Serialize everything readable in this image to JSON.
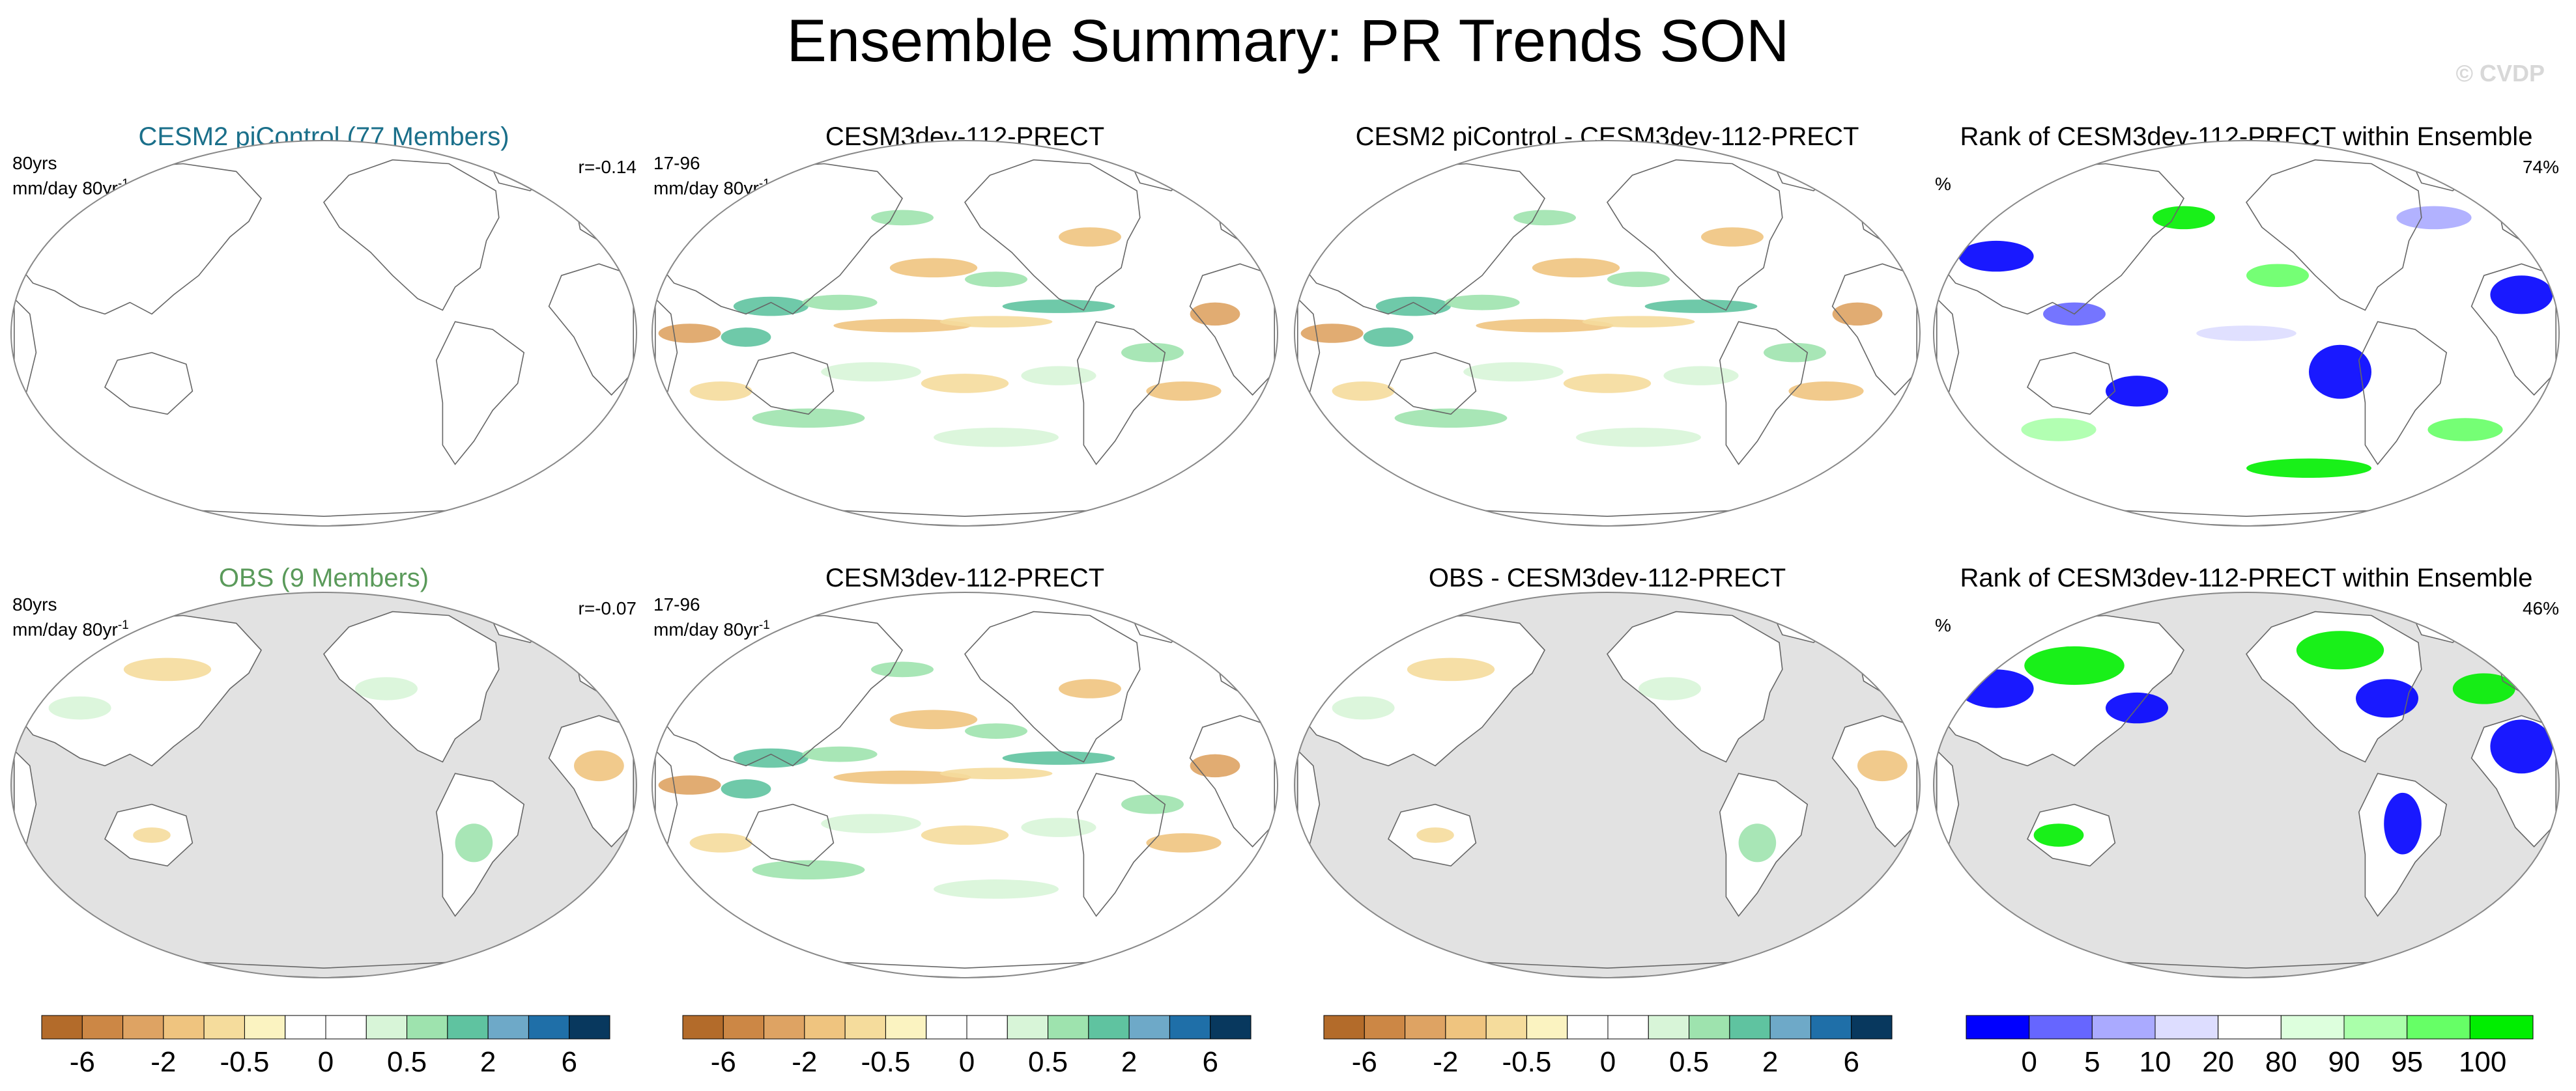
{
  "title": "Ensemble Summary: PR Trends SON",
  "watermark": "© CVDP",
  "colors": {
    "ensemble_title": "#1a6f8a",
    "obs_title": "#5a9a5a",
    "land_gray": "#e2e2e2",
    "coast": "#666666"
  },
  "rows": [
    {
      "panels": [
        {
          "title": "CESM2 piControl (77 Members)",
          "left_top": "80yrs",
          "left_bottom": "mm/day 80yr",
          "left_sup": "-1",
          "right": "r=-0.14"
        },
        {
          "title": "CESM3dev-112-PRECT",
          "left_top": "17-96",
          "left_bottom": "mm/day 80yr",
          "left_sup": "-1",
          "right": ""
        },
        {
          "title": "CESM2 piControl - CESM3dev-112-PRECT",
          "left_top": "",
          "left_bottom": "",
          "left_sup": "",
          "right": ""
        },
        {
          "title": "Rank of CESM3dev-112-PRECT within Ensemble",
          "left_top": "",
          "left_bottom": "%",
          "left_sup": "",
          "right": "74%"
        }
      ]
    },
    {
      "panels": [
        {
          "title": "OBS (9 Members)",
          "left_top": "80yrs",
          "left_bottom": "mm/day 80yr",
          "left_sup": "-1",
          "right": "r=-0.07"
        },
        {
          "title": "CESM3dev-112-PRECT",
          "left_top": "17-96",
          "left_bottom": "mm/day 80yr",
          "left_sup": "-1",
          "right": ""
        },
        {
          "title": "OBS - CESM3dev-112-PRECT",
          "left_top": "",
          "left_bottom": "",
          "left_sup": "",
          "right": ""
        },
        {
          "title": "Rank of CESM3dev-112-PRECT within Ensemble",
          "left_top": "",
          "left_bottom": "%",
          "left_sup": "",
          "right": "46%"
        }
      ]
    }
  ],
  "chart_data": [
    {
      "type": "heatmap",
      "name": "Trend colorbar",
      "units": "mm/day 80yr-1",
      "tick_labels": [
        "-6",
        "-2",
        "-0.5",
        "0",
        "0.5",
        "2",
        "6"
      ],
      "colors": [
        "#b36b2a",
        "#cc8745",
        "#dea363",
        "#efc47f",
        "#f5dc9c",
        "#fbf3c1",
        "#ffffff",
        "#ffffff",
        "#d8f5d8",
        "#9ee3ae",
        "#5fc3a0",
        "#6ea9c8",
        "#1f6fa8",
        "#08385e"
      ]
    },
    {
      "type": "heatmap",
      "name": "Rank colorbar",
      "units": "%",
      "tick_labels": [
        "0",
        "5",
        "10",
        "20",
        "80",
        "90",
        "95",
        "100"
      ],
      "colors": [
        "#0000ff",
        "#6666ff",
        "#aaaaff",
        "#ddddff",
        "#ffffff",
        "#ddffdd",
        "#aaffaa",
        "#66ff66",
        "#00ee00"
      ]
    }
  ]
}
